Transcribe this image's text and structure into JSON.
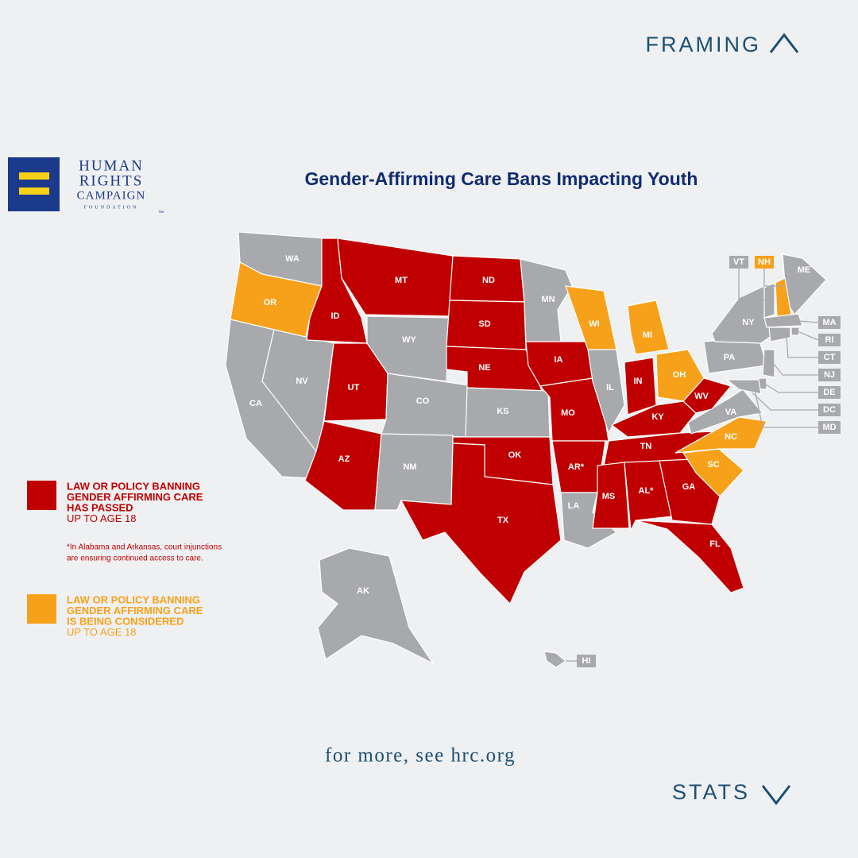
{
  "nav": {
    "up": "FRAMING",
    "down": "STATS"
  },
  "logo": {
    "lines": [
      "HUMAN",
      "RIGHTS",
      "CAMPAIGN"
    ],
    "sub": "FOUNDATION",
    "mark": "™"
  },
  "title": "Gender-Affirming Care Bans Impacting Youth",
  "states": [
    {
      "label": "WA",
      "color": "#a7a9ac"
    },
    {
      "label": "OR",
      "color": "#f7a11a"
    },
    {
      "label": "CA",
      "color": "#a7a9ac"
    },
    {
      "label": "NV",
      "color": "#a7a9ac"
    },
    {
      "label": "ID",
      "color": "#c00000"
    },
    {
      "label": "MT",
      "color": "#c00000"
    },
    {
      "label": "WY",
      "color": "#a7a9ac"
    },
    {
      "label": "UT",
      "color": "#c00000"
    },
    {
      "label": "CO",
      "color": "#a7a9ac"
    },
    {
      "label": "AZ",
      "color": "#c00000"
    },
    {
      "label": "NM",
      "color": "#a7a9ac"
    },
    {
      "label": "ND",
      "color": "#c00000"
    },
    {
      "label": "SD",
      "color": "#c00000"
    },
    {
      "label": "NE",
      "color": "#c00000"
    },
    {
      "label": "KS",
      "color": "#a7a9ac"
    },
    {
      "label": "OK",
      "color": "#c00000"
    },
    {
      "label": "TX",
      "color": "#c00000"
    },
    {
      "label": "MN",
      "color": "#a7a9ac"
    },
    {
      "label": "IA",
      "color": "#c00000"
    },
    {
      "label": "MO",
      "color": "#c00000"
    },
    {
      "label": "AR*",
      "color": "#c00000"
    },
    {
      "label": "LA",
      "color": "#a7a9ac"
    },
    {
      "label": "WI",
      "color": "#f7a11a"
    },
    {
      "label": "IL",
      "color": "#a7a9ac"
    },
    {
      "label": "MI",
      "color": "#f7a11a"
    },
    {
      "label": "IN",
      "color": "#c00000"
    },
    {
      "label": "OH",
      "color": "#f7a11a"
    },
    {
      "label": "KY",
      "color": "#c00000"
    },
    {
      "label": "TN",
      "color": "#c00000"
    },
    {
      "label": "MS",
      "color": "#c00000"
    },
    {
      "label": "AL*",
      "color": "#c00000"
    },
    {
      "label": "GA",
      "color": "#c00000"
    },
    {
      "label": "FL",
      "color": "#c00000"
    },
    {
      "label": "SC",
      "color": "#f7a11a"
    },
    {
      "label": "NC",
      "color": "#f7a11a"
    },
    {
      "label": "VA",
      "color": "#a7a9ac"
    },
    {
      "label": "WV",
      "color": "#c00000"
    },
    {
      "label": "PA",
      "color": "#a7a9ac"
    },
    {
      "label": "NY",
      "color": "#a7a9ac"
    },
    {
      "label": "ME",
      "color": "#a7a9ac"
    },
    {
      "label": "VT",
      "color": "#a7a9ac"
    },
    {
      "label": "NH",
      "color": "#f7a11a"
    },
    {
      "label": "MA",
      "color": "#a7a9ac"
    },
    {
      "label": "RI",
      "color": "#a7a9ac"
    },
    {
      "label": "CT",
      "color": "#a7a9ac"
    },
    {
      "label": "NJ",
      "color": "#a7a9ac"
    },
    {
      "label": "DE",
      "color": "#a7a9ac"
    },
    {
      "label": "DC",
      "color": "#a7a9ac"
    },
    {
      "label": "MD",
      "color": "#a7a9ac"
    },
    {
      "label": "AK",
      "color": "#a7a9ac"
    },
    {
      "label": "HI",
      "color": "#a7a9ac"
    }
  ],
  "legend": [
    {
      "color": "#c00000",
      "lines": [
        "LAW OR POLICY BANNING",
        "GENDER AFFIRMING CARE",
        "HAS PASSED"
      ],
      "note": "UP TO AGE 18",
      "footnote": [
        "*In Alabama and Arkansas, court injunctions",
        "are ensuring continued access to care."
      ]
    },
    {
      "color": "#f7a11a",
      "lines": [
        "LAW OR POLICY BANNING",
        "GENDER AFFIRMING CARE",
        "IS BEING CONSIDERED"
      ],
      "note": "UP TO AGE 18"
    }
  ],
  "link": "for more, see hrc.org"
}
